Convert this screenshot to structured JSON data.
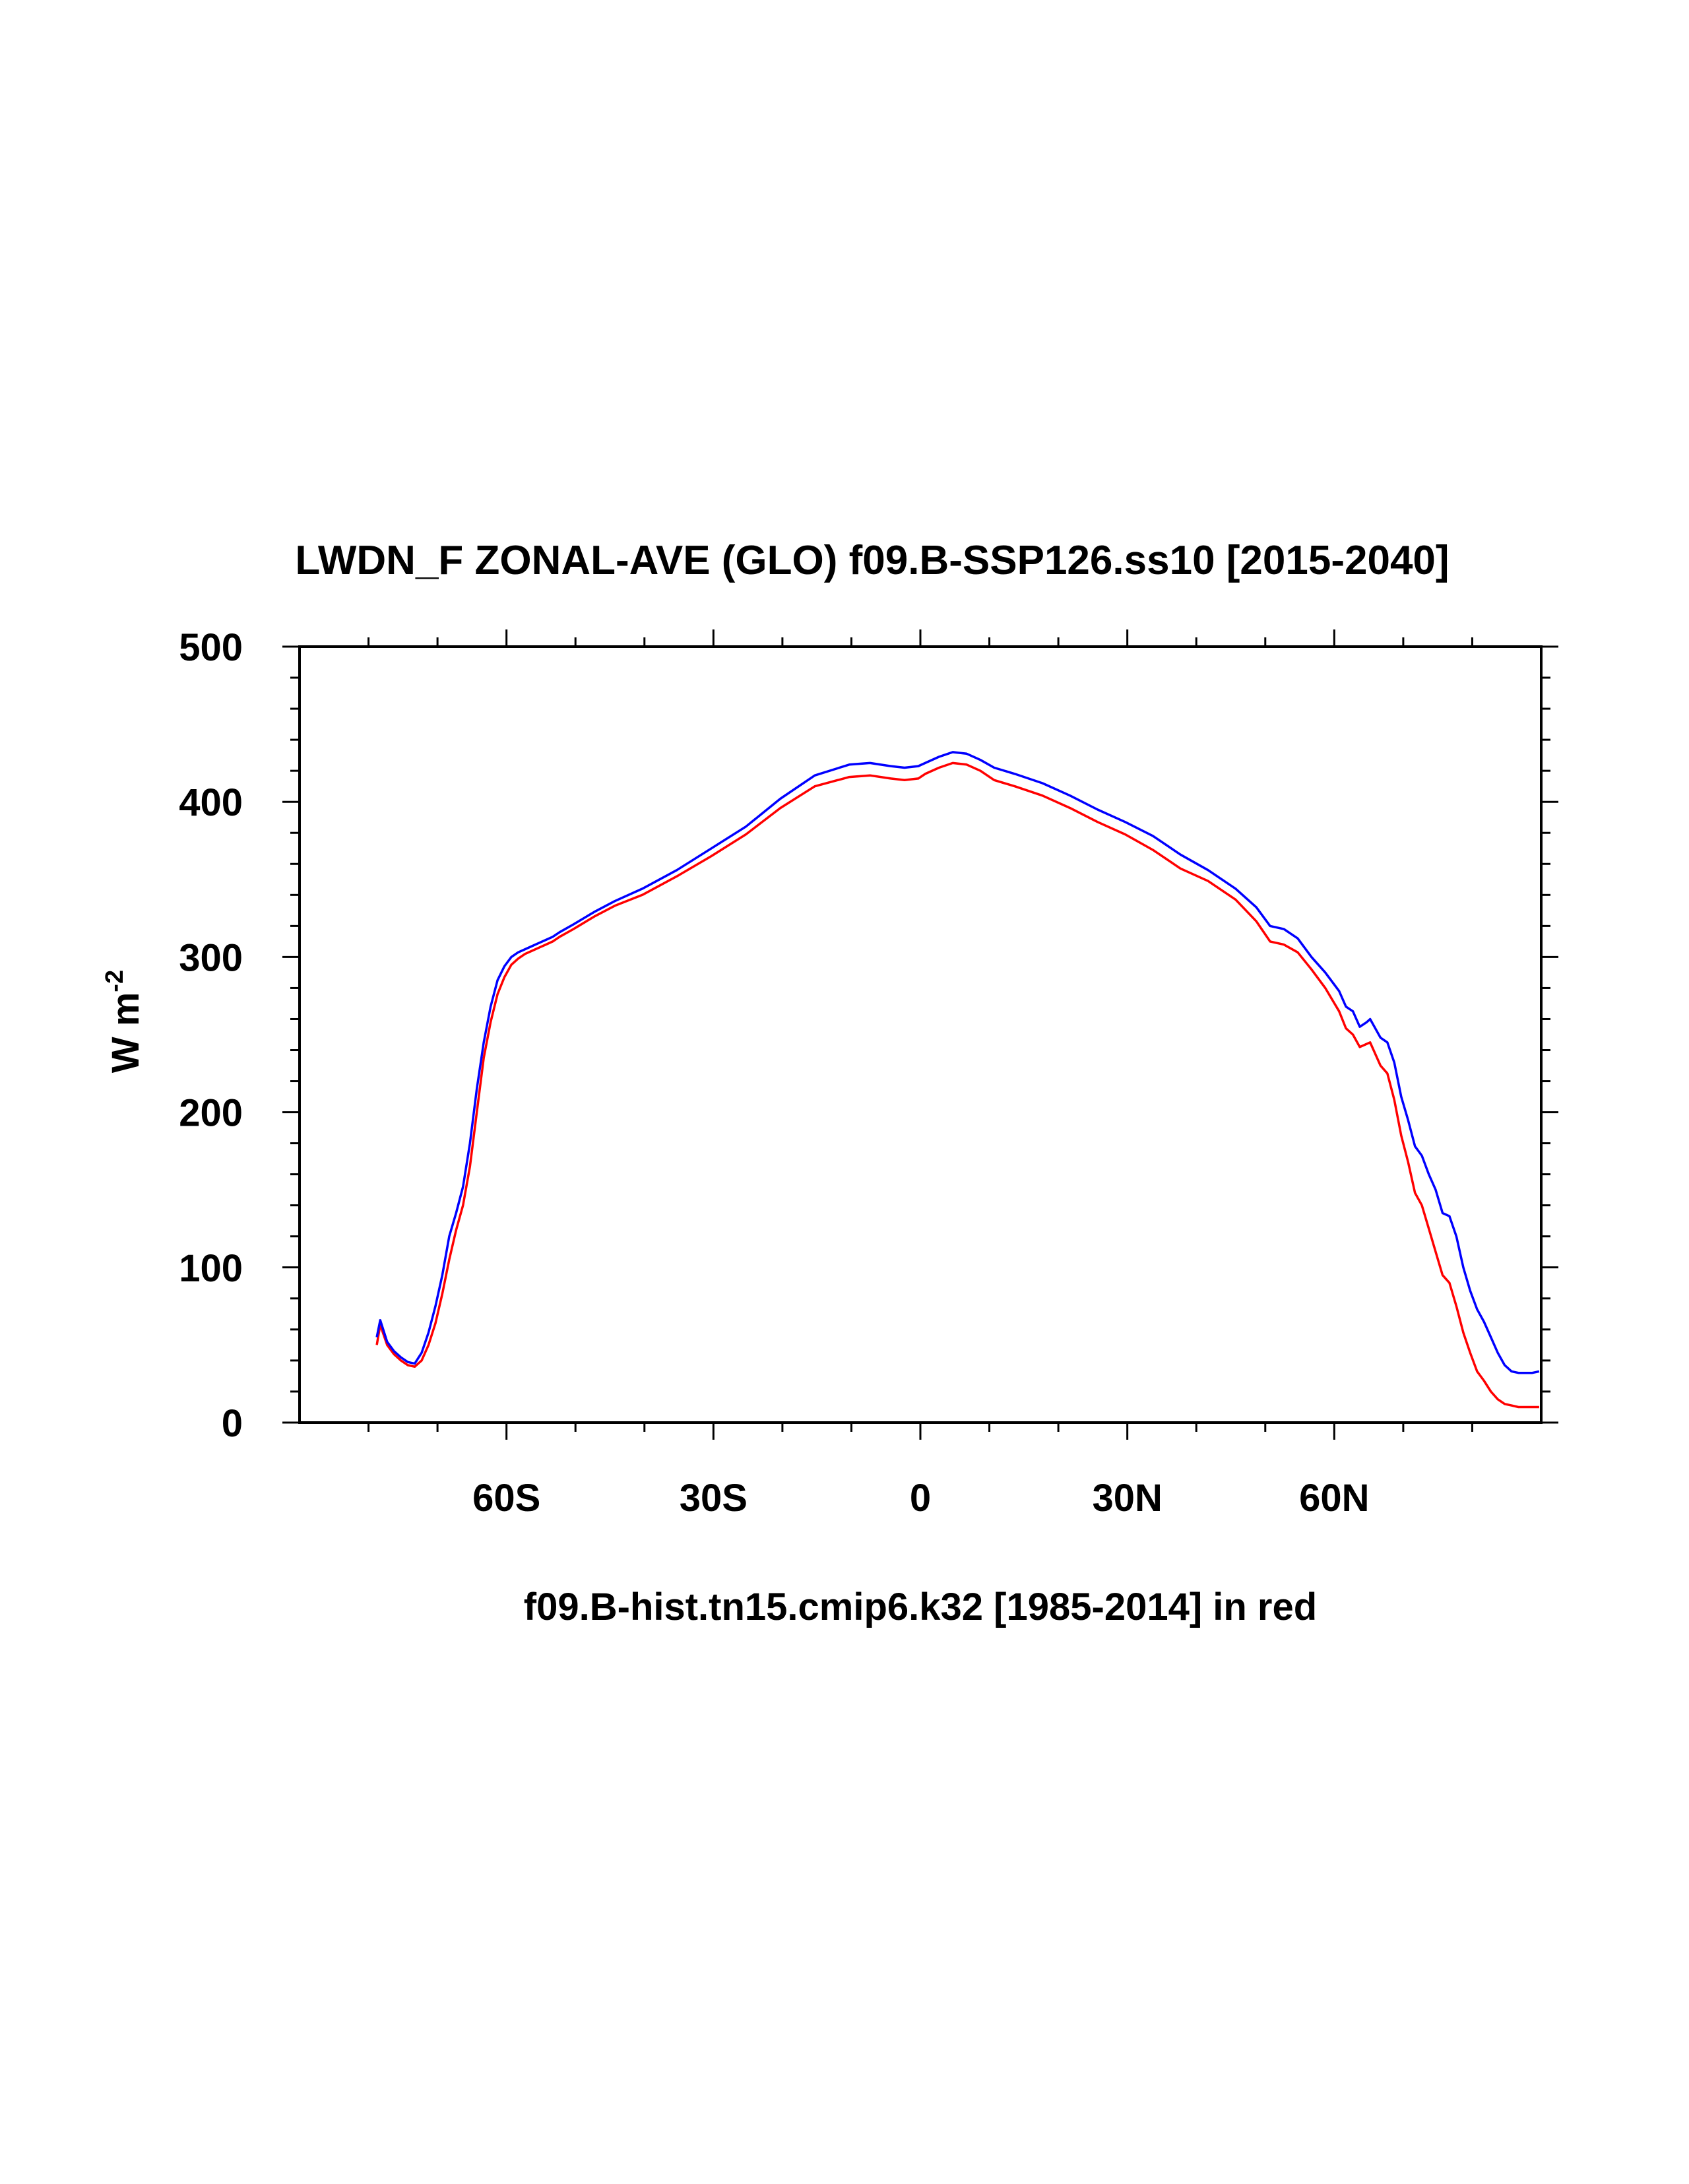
{
  "chart_data": {
    "type": "line",
    "title": "LWDN_F ZONAL-AVE (GLO) f09.B-SSP126.ss10 [2015-2040]",
    "subtitle": "f09.B-hist.tn15.cmip6.k32 [1985-2014] in red",
    "ylabel_main": "W m",
    "ylabel_sup": "-2",
    "xlim": [
      -90,
      90
    ],
    "ylim": [
      0,
      500
    ],
    "x_ticks": [
      {
        "value": -60,
        "label": "60S"
      },
      {
        "value": -30,
        "label": "30S"
      },
      {
        "value": 0,
        "label": "0"
      },
      {
        "value": 30,
        "label": "30N"
      },
      {
        "value": 60,
        "label": "60N"
      }
    ],
    "y_ticks": [
      {
        "value": 0,
        "label": "0"
      },
      {
        "value": 100,
        "label": "100"
      },
      {
        "value": 200,
        "label": "200"
      },
      {
        "value": 300,
        "label": "300"
      },
      {
        "value": 400,
        "label": "400"
      },
      {
        "value": 500,
        "label": "500"
      }
    ],
    "series": [
      {
        "name": "f09.B-SSP126.ss10 [2015-2040]",
        "color": "#0000ff",
        "lat": [
          -78.8,
          -78.3,
          -77.3,
          -76.3,
          -75.3,
          -74.3,
          -73.3,
          -72.3,
          -71.3,
          -70.3,
          -69.3,
          -68.3,
          -67.3,
          -66.3,
          -65.3,
          -64.3,
          -63.3,
          -62.3,
          -61.3,
          -60.3,
          -59.3,
          -58.3,
          -57.3,
          -56.3,
          -55.3,
          -54.3,
          -53.3,
          -52.3,
          -50.3,
          -47.3,
          -44.3,
          -40.3,
          -35.3,
          -30.3,
          -25.3,
          -20.3,
          -15.3,
          -10.3,
          -7.3,
          -4.3,
          -2.3,
          -0.3,
          0.7,
          2.7,
          4.7,
          6.7,
          8.7,
          10.7,
          13.7,
          17.7,
          21.7,
          25.7,
          29.7,
          33.7,
          37.7,
          41.7,
          45.7,
          48.7,
          50.7,
          52.7,
          54.7,
          56.7,
          58.7,
          60.7,
          61.7,
          62.7,
          63.7,
          64.7,
          65.2,
          66.7,
          67.7,
          68.7,
          69.7,
          70.7,
          71.7,
          72.7,
          73.7,
          74.7,
          75.7,
          76.7,
          77.7,
          78.7,
          79.7,
          80.7,
          81.7,
          82.7,
          83.7,
          84.7,
          85.7,
          86.7,
          87.7,
          88.7,
          89.7
        ],
        "values": [
          55,
          66,
          52,
          46,
          42,
          39,
          38,
          45,
          58,
          75,
          95,
          120,
          135,
          152,
          180,
          215,
          245,
          268,
          285,
          294,
          300,
          303,
          305,
          307,
          309,
          311,
          313,
          316,
          321,
          329,
          336,
          344,
          356,
          370,
          384,
          402,
          417,
          424,
          425,
          423,
          422,
          423,
          425,
          429,
          432,
          431,
          427,
          422,
          418,
          412,
          404,
          395,
          387,
          378,
          366,
          356,
          344,
          332,
          320,
          318,
          312,
          300,
          290,
          278,
          268,
          265,
          255,
          258,
          260,
          248,
          245,
          232,
          210,
          195,
          178,
          172,
          160,
          150,
          135,
          133,
          120,
          100,
          85,
          73,
          65,
          55,
          45,
          37,
          33,
          32,
          32,
          32,
          33
        ]
      },
      {
        "name": "f09.B-hist.tn15.cmip6.k32 [1985-2014]",
        "color": "#ff0000",
        "lat": [
          -78.8,
          -78.3,
          -77.3,
          -76.3,
          -75.3,
          -74.3,
          -73.3,
          -72.3,
          -71.3,
          -70.3,
          -69.3,
          -68.3,
          -67.3,
          -66.3,
          -65.3,
          -64.3,
          -63.3,
          -62.3,
          -61.3,
          -60.3,
          -59.3,
          -58.3,
          -57.3,
          -56.3,
          -55.3,
          -54.3,
          -53.3,
          -52.3,
          -50.3,
          -47.3,
          -44.3,
          -40.3,
          -35.3,
          -30.3,
          -25.3,
          -20.3,
          -15.3,
          -10.3,
          -7.3,
          -4.3,
          -2.3,
          -0.3,
          0.7,
          2.7,
          4.7,
          6.7,
          8.7,
          10.7,
          13.7,
          17.7,
          21.7,
          25.7,
          29.7,
          33.7,
          37.7,
          41.7,
          45.7,
          48.7,
          50.7,
          52.7,
          54.7,
          56.7,
          58.7,
          60.7,
          61.7,
          62.7,
          63.7,
          64.7,
          65.2,
          66.7,
          67.7,
          68.7,
          69.7,
          70.7,
          71.7,
          72.7,
          73.7,
          74.7,
          75.7,
          76.7,
          77.7,
          78.7,
          79.7,
          80.7,
          81.7,
          82.7,
          83.7,
          84.7,
          85.7,
          86.7,
          87.7,
          88.7,
          89.7
        ],
        "values": [
          50,
          63,
          50,
          44,
          40,
          37,
          36,
          40,
          50,
          64,
          83,
          105,
          124,
          140,
          165,
          200,
          235,
          258,
          276,
          287,
          295,
          299,
          302,
          304,
          306,
          308,
          310,
          313,
          318,
          326,
          333,
          340,
          352,
          365,
          379,
          396,
          410,
          416,
          417,
          415,
          414,
          415,
          418,
          422,
          425,
          424,
          420,
          414,
          410,
          404,
          396,
          387,
          379,
          369,
          357,
          349,
          337,
          323,
          310,
          308,
          303,
          292,
          280,
          265,
          254,
          250,
          242,
          244,
          245,
          230,
          225,
          208,
          185,
          168,
          148,
          140,
          125,
          110,
          95,
          90,
          75,
          58,
          45,
          33,
          27,
          20,
          15,
          12,
          11,
          10,
          10,
          10,
          10
        ]
      }
    ]
  }
}
